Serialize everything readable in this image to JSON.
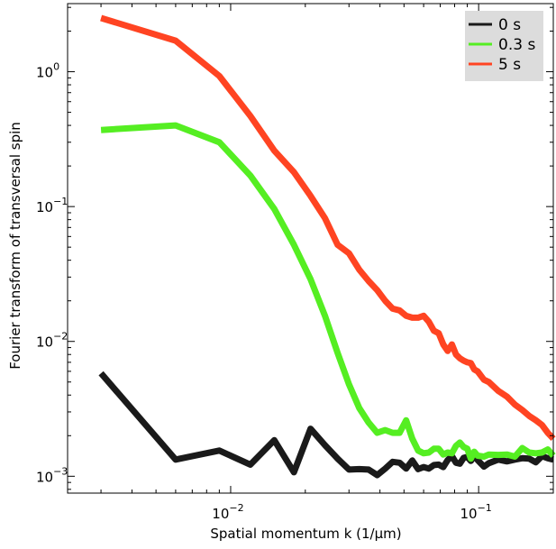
{
  "chart_data": {
    "type": "line",
    "xlabel": "Spatial momentum k (1/μm)",
    "ylabel": "Fourier transform of transversal spin",
    "xscale": "log",
    "yscale": "log",
    "xlim": [
      0.0022,
      0.2
    ],
    "ylim": [
      0.00075,
      3.2
    ],
    "x_ticks": [
      {
        "value": 0.01,
        "base": "10",
        "exp": "−2"
      },
      {
        "value": 0.1,
        "base": "10",
        "exp": "−1"
      }
    ],
    "y_ticks": [
      {
        "value": 0.001,
        "base": "10",
        "exp": "−3"
      },
      {
        "value": 0.01,
        "base": "10",
        "exp": "−2"
      },
      {
        "value": 0.1,
        "base": "10",
        "exp": "−1"
      },
      {
        "value": 1,
        "base": "10",
        "exp": "0"
      }
    ],
    "grid": false,
    "legend_position": "top-right",
    "series": [
      {
        "name": "0 s",
        "color": "#1a1a1a",
        "x": [
          0.003,
          0.006,
          0.009,
          0.012,
          0.015,
          0.018,
          0.021,
          0.024,
          0.027,
          0.03,
          0.033,
          0.036,
          0.039,
          0.042,
          0.045,
          0.048,
          0.051,
          0.054,
          0.057,
          0.06,
          0.063,
          0.066,
          0.069,
          0.072,
          0.075,
          0.078,
          0.081,
          0.084,
          0.087,
          0.09,
          0.093,
          0.096,
          0.099,
          0.105,
          0.11,
          0.12,
          0.13,
          0.14,
          0.15,
          0.16,
          0.17,
          0.18,
          0.19,
          0.2
        ],
        "y": [
          0.0058,
          0.00133,
          0.00155,
          0.00122,
          0.00185,
          0.00107,
          0.00225,
          0.0017,
          0.00135,
          0.00112,
          0.00113,
          0.00112,
          0.00102,
          0.00114,
          0.00128,
          0.00126,
          0.00114,
          0.00131,
          0.00113,
          0.00117,
          0.00114,
          0.00121,
          0.00122,
          0.00117,
          0.00132,
          0.00141,
          0.00126,
          0.00124,
          0.00137,
          0.00139,
          0.0013,
          0.00142,
          0.00132,
          0.00118,
          0.00125,
          0.00133,
          0.00129,
          0.00133,
          0.00136,
          0.00135,
          0.00127,
          0.00141,
          0.00136,
          0.00133
        ]
      },
      {
        "name": "0.3 s",
        "color": "#55ee22",
        "x": [
          0.003,
          0.006,
          0.009,
          0.012,
          0.015,
          0.018,
          0.021,
          0.024,
          0.027,
          0.03,
          0.033,
          0.036,
          0.039,
          0.042,
          0.045,
          0.048,
          0.051,
          0.054,
          0.057,
          0.06,
          0.063,
          0.066,
          0.069,
          0.072,
          0.075,
          0.078,
          0.081,
          0.084,
          0.087,
          0.09,
          0.093,
          0.096,
          0.099,
          0.105,
          0.11,
          0.12,
          0.13,
          0.14,
          0.15,
          0.16,
          0.17,
          0.18,
          0.19,
          0.2
        ],
        "y": [
          0.37,
          0.4,
          0.3,
          0.17,
          0.096,
          0.052,
          0.029,
          0.0155,
          0.0082,
          0.0048,
          0.0032,
          0.0025,
          0.0021,
          0.0022,
          0.0021,
          0.0021,
          0.0026,
          0.0019,
          0.00155,
          0.00148,
          0.0015,
          0.0016,
          0.0016,
          0.00145,
          0.0015,
          0.00148,
          0.00168,
          0.00178,
          0.00165,
          0.0016,
          0.00135,
          0.00152,
          0.00142,
          0.0014,
          0.00145,
          0.00144,
          0.00145,
          0.0014,
          0.00162,
          0.0015,
          0.00148,
          0.0015,
          0.00158,
          0.00142
        ]
      },
      {
        "name": "5 s",
        "color": "#ff4422",
        "x": [
          0.003,
          0.006,
          0.009,
          0.012,
          0.015,
          0.018,
          0.021,
          0.024,
          0.027,
          0.03,
          0.033,
          0.036,
          0.039,
          0.042,
          0.045,
          0.048,
          0.051,
          0.054,
          0.057,
          0.06,
          0.063,
          0.066,
          0.069,
          0.072,
          0.075,
          0.078,
          0.081,
          0.084,
          0.087,
          0.09,
          0.093,
          0.096,
          0.099,
          0.105,
          0.11,
          0.12,
          0.13,
          0.14,
          0.15,
          0.16,
          0.17,
          0.18,
          0.19,
          0.2
        ],
        "y": [
          2.5,
          1.7,
          0.93,
          0.47,
          0.26,
          0.18,
          0.12,
          0.082,
          0.052,
          0.045,
          0.034,
          0.028,
          0.024,
          0.02,
          0.0175,
          0.017,
          0.0155,
          0.015,
          0.015,
          0.0155,
          0.014,
          0.012,
          0.0115,
          0.0095,
          0.0085,
          0.0095,
          0.008,
          0.0075,
          0.0072,
          0.007,
          0.0069,
          0.0062,
          0.006,
          0.0052,
          0.005,
          0.0043,
          0.0039,
          0.0034,
          0.0031,
          0.0028,
          0.0026,
          0.0024,
          0.0021,
          0.0019
        ]
      }
    ]
  }
}
